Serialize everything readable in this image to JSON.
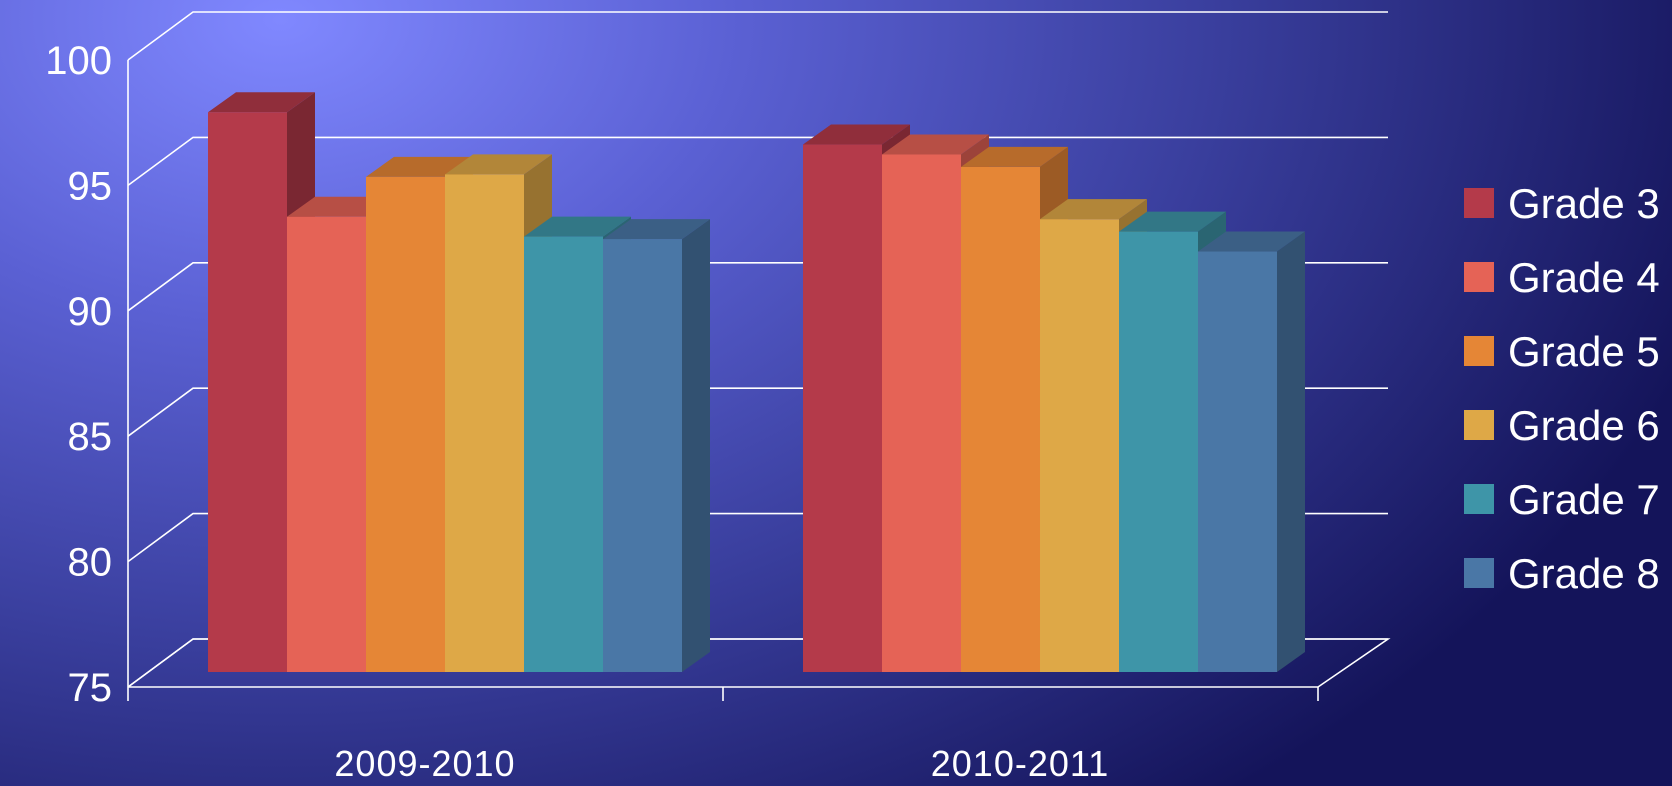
{
  "chart_data": {
    "type": "bar",
    "style": "3d-clustered-column",
    "categories": [
      "2009-2010",
      "2010-2011"
    ],
    "series": [
      {
        "name": "Grade 3",
        "values": [
          97.5,
          96.2
        ],
        "color": "#b43a4a"
      },
      {
        "name": "Grade 4",
        "values": [
          93.3,
          95.8
        ],
        "color": "#e56356"
      },
      {
        "name": "Grade 5",
        "values": [
          94.9,
          95.3
        ],
        "color": "#e58636"
      },
      {
        "name": "Grade 6",
        "values": [
          95.0,
          93.2
        ],
        "color": "#dea847"
      },
      {
        "name": "Grade 7",
        "values": [
          92.5,
          92.7
        ],
        "color": "#3e95a8"
      },
      {
        "name": "Grade 8",
        "values": [
          92.4,
          91.9
        ],
        "color": "#4a77a6"
      }
    ],
    "y_ticks": [
      "75",
      "80",
      "85",
      "90",
      "95",
      "100"
    ],
    "ylim": [
      75,
      100
    ],
    "grid": true,
    "legend_position": "right",
    "title": "",
    "xlabel": "",
    "ylabel": ""
  }
}
